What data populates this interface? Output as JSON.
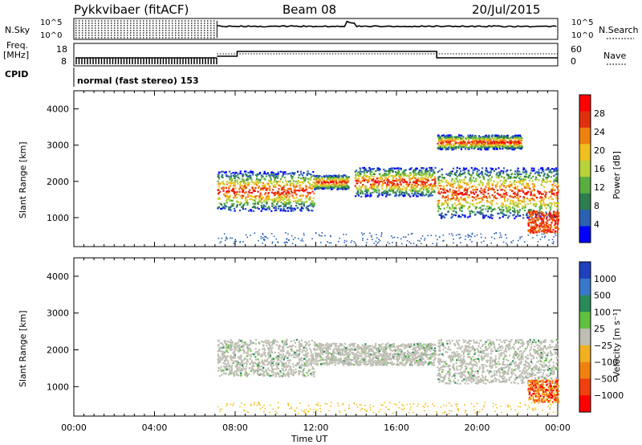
{
  "header": {
    "radar": "Pykkvibaer (fitACF)",
    "beam": "Beam 08",
    "date": "20/Jul/2015",
    "cpid_text": "normal (fast stereo) 153"
  },
  "left_labels": {
    "nsky": "N.Sky",
    "freq_line1": "Freq.",
    "freq_line2": "[MHz]",
    "cpid": "CPID"
  },
  "right_labels": {
    "nsearch": "N.Search",
    "nave": "Nave"
  },
  "small_ticks": {
    "noise_left": [
      "10^5",
      "10^0"
    ],
    "noise_right": [
      "10^5",
      "10^0"
    ],
    "freq_left": [
      "18",
      "8"
    ],
    "nave_right": [
      "60",
      "0"
    ]
  },
  "chart_data": [
    {
      "type": "heatmap",
      "panel": "power",
      "ylabel": "Slant Range [km]",
      "xlabel": "Time UT",
      "xlim": [
        "00:00",
        "24:00"
      ],
      "ylim": [
        200,
        4500
      ],
      "y_ticks": [
        1000,
        2000,
        3000,
        4000
      ],
      "colorbar": {
        "label": "Power [dB]",
        "ticks": [
          4,
          8,
          12,
          16,
          20,
          24,
          28
        ],
        "range": [
          0,
          32
        ],
        "colors": [
          "#0000ff",
          "#2c60b0",
          "#2e7d4f",
          "#5aae40",
          "#b8d23a",
          "#f0c020",
          "#f08010",
          "#e03010",
          "#ff0000"
        ]
      },
      "scatter_regions": [
        {
          "t": [
            7.1,
            11.9
          ],
          "r": [
            1200,
            2300
          ],
          "desc": "main echo band"
        },
        {
          "t": [
            11.9,
            13.6
          ],
          "r": [
            1800,
            2200
          ]
        },
        {
          "t": [
            13.9,
            17.9
          ],
          "r": [
            1600,
            2400
          ]
        },
        {
          "t": [
            18.0,
            24.0
          ],
          "r": [
            1000,
            2400
          ]
        },
        {
          "t": [
            18.0,
            22.2
          ],
          "r": [
            2900,
            3300
          ]
        },
        {
          "t": [
            22.5,
            24.0
          ],
          "r": [
            600,
            1200
          ],
          "desc": "strong near-range echoes"
        }
      ]
    },
    {
      "type": "heatmap",
      "panel": "velocity",
      "ylabel": "Slant Range [km]",
      "xlabel": "Time UT",
      "xlim": [
        "00:00",
        "24:00"
      ],
      "ylim": [
        200,
        4500
      ],
      "y_ticks": [
        1000,
        2000,
        3000,
        4000
      ],
      "colorbar": {
        "label": "Velocity [m s⁻¹]",
        "ticks": [
          "1000",
          "500",
          "100",
          "25",
          "−25",
          "−100",
          "−500",
          "−1000"
        ],
        "colors": [
          "#2040c0",
          "#3878c8",
          "#2a8a5a",
          "#60c040",
          "#bebeb4",
          "#f0b020",
          "#f08010",
          "#f04010",
          "#ff0000"
        ]
      },
      "scatter_regions": [
        {
          "t": [
            7.1,
            11.9
          ],
          "r": [
            1300,
            2300
          ],
          "desc": "mostly low velocity (grey)"
        },
        {
          "t": [
            11.9,
            17.9
          ],
          "r": [
            1600,
            2200
          ]
        },
        {
          "t": [
            18.0,
            24.0
          ],
          "r": [
            1100,
            2300
          ]
        },
        {
          "t": [
            22.5,
            24.0
          ],
          "r": [
            600,
            1200
          ],
          "desc": "negative velocity (orange/red)"
        }
      ]
    }
  ],
  "x_ticks": [
    "00:00",
    "04:00",
    "08:00",
    "12:00",
    "16:00",
    "20:00",
    "00:00"
  ],
  "time_axis_label": "Time UT"
}
